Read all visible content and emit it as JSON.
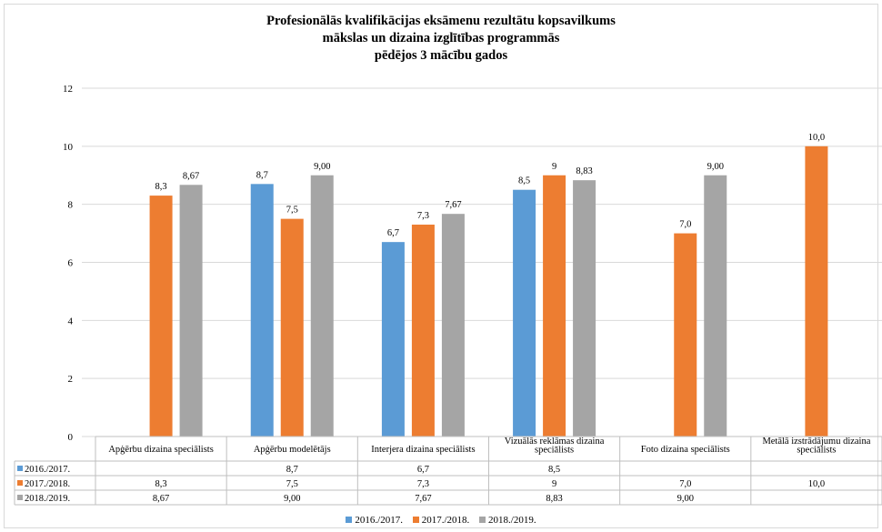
{
  "chart_data": {
    "type": "bar",
    "title": [
      "Profesionālās kvalifikācijas eksāmenu rezultātu kopsavilkums",
      "mākslas un dizaina izglītības programmās",
      "pēdējos  3 mācību gados"
    ],
    "categories": [
      "Apģērbu dizaina speciālists",
      "Apģērbu modelētājs",
      "Interjera dizaina speciālists",
      "Vizuālās reklāmas dizaina speciālists",
      "Foto dizaina speciālists",
      "Metālā izstrādājumu dizaina speciālists"
    ],
    "category_lines": [
      [
        "Apģērbu dizaina speciālists"
      ],
      [
        "Apģērbu modelētājs"
      ],
      [
        "Interjera dizaina speciālists"
      ],
      [
        "Vizuālās reklāmas dizaina",
        "speciālists"
      ],
      [
        "Foto dizaina speciālists"
      ],
      [
        "Metālā izstrādājumu dizaina",
        "speciālists"
      ]
    ],
    "series": [
      {
        "name": "2016./2017.",
        "color": "#5b9bd5",
        "values": [
          null,
          8.7,
          6.7,
          8.5,
          null,
          null
        ],
        "labels": [
          "",
          "8,7",
          "6,7",
          "8,5",
          "",
          ""
        ]
      },
      {
        "name": "2017./2018.",
        "color": "#ed7d31",
        "values": [
          8.3,
          7.5,
          7.3,
          9,
          7.0,
          10.0
        ],
        "labels": [
          "8,3",
          "7,5",
          "7,3",
          "9",
          "7,0",
          "10,0"
        ]
      },
      {
        "name": "2018./2019.",
        "color": "#a5a5a5",
        "values": [
          8.67,
          9.0,
          7.67,
          8.83,
          9.0,
          null
        ],
        "labels": [
          "8,67",
          "9,00",
          "7,67",
          "8,83",
          "9,00",
          ""
        ]
      }
    ],
    "yticks": [
      "0",
      "2",
      "4",
      "6",
      "8",
      "10",
      "12"
    ],
    "ylim": [
      0,
      12
    ],
    "grid": true,
    "legend": "bottom",
    "data_table": true
  }
}
